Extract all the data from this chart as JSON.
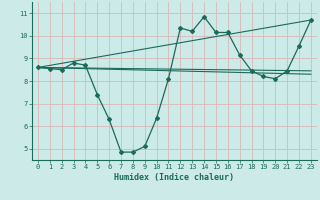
{
  "xlabel": "Humidex (Indice chaleur)",
  "background_color": "#cceae8",
  "grid_color": "#aaccca",
  "line_color": "#1a6b5a",
  "xlim": [
    -0.5,
    23.5
  ],
  "ylim": [
    4.5,
    11.5
  ],
  "yticks": [
    5,
    6,
    7,
    8,
    9,
    10,
    11
  ],
  "xticks": [
    0,
    1,
    2,
    3,
    4,
    5,
    6,
    7,
    8,
    9,
    10,
    11,
    12,
    13,
    14,
    15,
    16,
    17,
    18,
    19,
    20,
    21,
    22,
    23
  ],
  "series1_x": [
    0,
    1,
    2,
    3,
    4,
    5,
    6,
    7,
    8,
    9,
    10,
    11,
    12,
    13,
    14,
    15,
    16,
    17,
    18,
    19,
    20,
    21,
    22,
    23
  ],
  "series1_y": [
    8.6,
    8.55,
    8.5,
    8.8,
    8.7,
    7.4,
    6.3,
    4.85,
    4.85,
    5.1,
    6.35,
    8.1,
    10.35,
    10.2,
    10.85,
    10.15,
    10.15,
    9.15,
    8.45,
    8.2,
    8.1,
    8.45,
    9.55,
    10.7
  ],
  "series2_x": [
    0,
    23
  ],
  "series2_y": [
    8.6,
    10.7
  ],
  "series3_x": [
    0,
    23
  ],
  "series3_y": [
    8.6,
    8.3
  ],
  "series4_x": [
    0,
    23
  ],
  "series4_y": [
    8.6,
    8.45
  ]
}
